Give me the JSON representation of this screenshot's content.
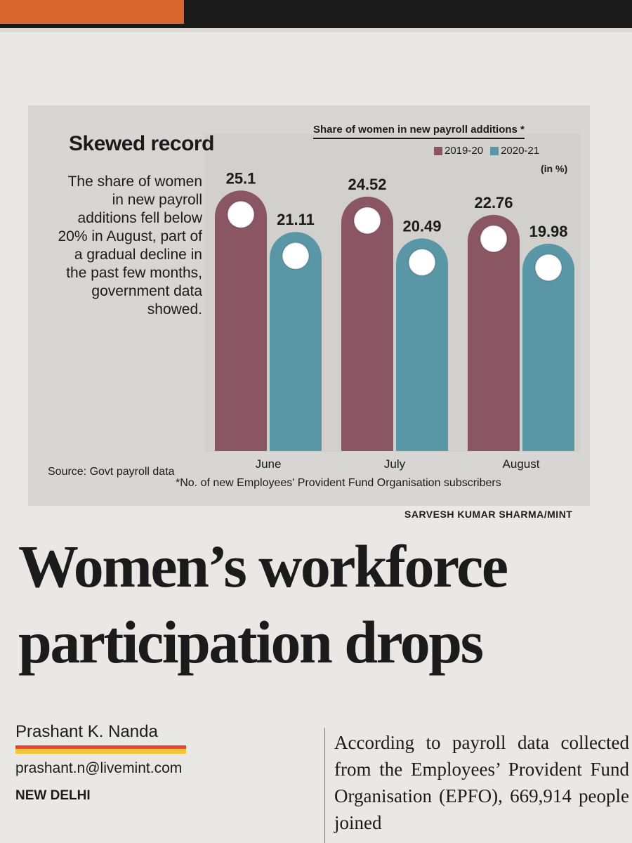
{
  "chart_data": {
    "type": "bar",
    "title": "Skewed record",
    "subtitle": "Share of women in new payroll additions *",
    "description": "The share of women in new payroll additions fell below 20% in August, part of a gradual decline in the past few months, government data showed.",
    "unit": "(in %)",
    "categories": [
      "June",
      "July",
      "August"
    ],
    "series": [
      {
        "name": "2019-20",
        "color": "#8b5663",
        "values": [
          25.1,
          24.52,
          22.76
        ]
      },
      {
        "name": "2020-21",
        "color": "#5a97a6",
        "values": [
          21.11,
          20.49,
          19.98
        ]
      }
    ],
    "ylim": [
      0,
      26
    ],
    "grid": false,
    "legend_position": "top-right",
    "source": "Source: Govt payroll data",
    "footnote": "*No. of new Employees' Provident Fund Organisation subscribers",
    "credit": "SARVESH KUMAR SHARMA/MINT"
  },
  "article": {
    "headline": "Women’s workforce participation drops",
    "author": "Prashant K. Nanda",
    "email": "prashant.n@livemint.com",
    "dateline": "NEW DELHI",
    "body": "According to payroll data collected from the Employees’ Provident Fund Organisation (EPFO), 669,914 people joined"
  }
}
